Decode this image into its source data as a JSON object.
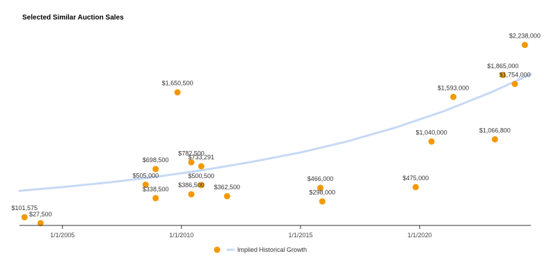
{
  "chart_data": {
    "type": "scatter",
    "title": "Selected Similar Auction Sales",
    "x_axis_ticks": [
      "1/1/2005",
      "1/1/2010",
      "1/1/2015",
      "1/1/2020"
    ],
    "xlim": [
      "2003-03-15",
      "2024-09-01"
    ],
    "ylim": [
      0,
      2450000
    ],
    "grid": false,
    "legend_position": "bottom",
    "series": [
      {
        "name": "",
        "color": "#f29900",
        "points": [
          {
            "x": "2003-06-01",
            "y": 101575,
            "label": "$101,575"
          },
          {
            "x": "2004-02-01",
            "y": 27500,
            "label": "$27,500"
          },
          {
            "x": "2008-07-01",
            "y": 505000,
            "label": "$505,000"
          },
          {
            "x": "2008-12-01",
            "y": 698500,
            "label": "$698,500"
          },
          {
            "x": "2008-12-01",
            "y": 338500,
            "label": "$338,500"
          },
          {
            "x": "2009-11-01",
            "y": 1650500,
            "label": "$1,650,500"
          },
          {
            "x": "2010-06-01",
            "y": 782500,
            "label": "$782,500"
          },
          {
            "x": "2010-06-01",
            "y": 386500,
            "label": "$386,500"
          },
          {
            "x": "2010-11-01",
            "y": 733291,
            "label": "$733,291"
          },
          {
            "x": "2010-11-01",
            "y": 500500,
            "label": "$500,500"
          },
          {
            "x": "2011-12-01",
            "y": 362500,
            "label": "$362,500"
          },
          {
            "x": "2015-11-01",
            "y": 466000,
            "label": "$466,000"
          },
          {
            "x": "2015-12-01",
            "y": 298000,
            "label": "$298,000"
          },
          {
            "x": "2019-11-01",
            "y": 475000,
            "label": "$475,000"
          },
          {
            "x": "2020-07-01",
            "y": 1040000,
            "label": "$1,040,000"
          },
          {
            "x": "2021-06-01",
            "y": 1593000,
            "label": "$1,593,000"
          },
          {
            "x": "2023-03-01",
            "y": 1066800,
            "label": "$1,066,800"
          },
          {
            "x": "2023-07-01",
            "y": 1865000,
            "label": "$1,865,000"
          },
          {
            "x": "2024-01-01",
            "y": 1754000,
            "label": "$1,754,000"
          },
          {
            "x": "2024-06-01",
            "y": 2238000,
            "label": "$2,238,000"
          }
        ]
      },
      {
        "name": "Implied Historical Growth",
        "type": "line",
        "color": "#c6d9f5",
        "points": [
          {
            "x": "2003-03-15",
            "y": 430000
          },
          {
            "x": "2005-01-01",
            "y": 475000
          },
          {
            "x": "2007-01-01",
            "y": 535000
          },
          {
            "x": "2009-01-01",
            "y": 605000
          },
          {
            "x": "2011-01-01",
            "y": 690000
          },
          {
            "x": "2013-01-01",
            "y": 790000
          },
          {
            "x": "2015-01-01",
            "y": 905000
          },
          {
            "x": "2017-01-01",
            "y": 1045000
          },
          {
            "x": "2019-01-01",
            "y": 1215000
          },
          {
            "x": "2021-01-01",
            "y": 1415000
          },
          {
            "x": "2023-01-01",
            "y": 1650000
          },
          {
            "x": "2024-09-01",
            "y": 1875000
          }
        ]
      }
    ]
  }
}
